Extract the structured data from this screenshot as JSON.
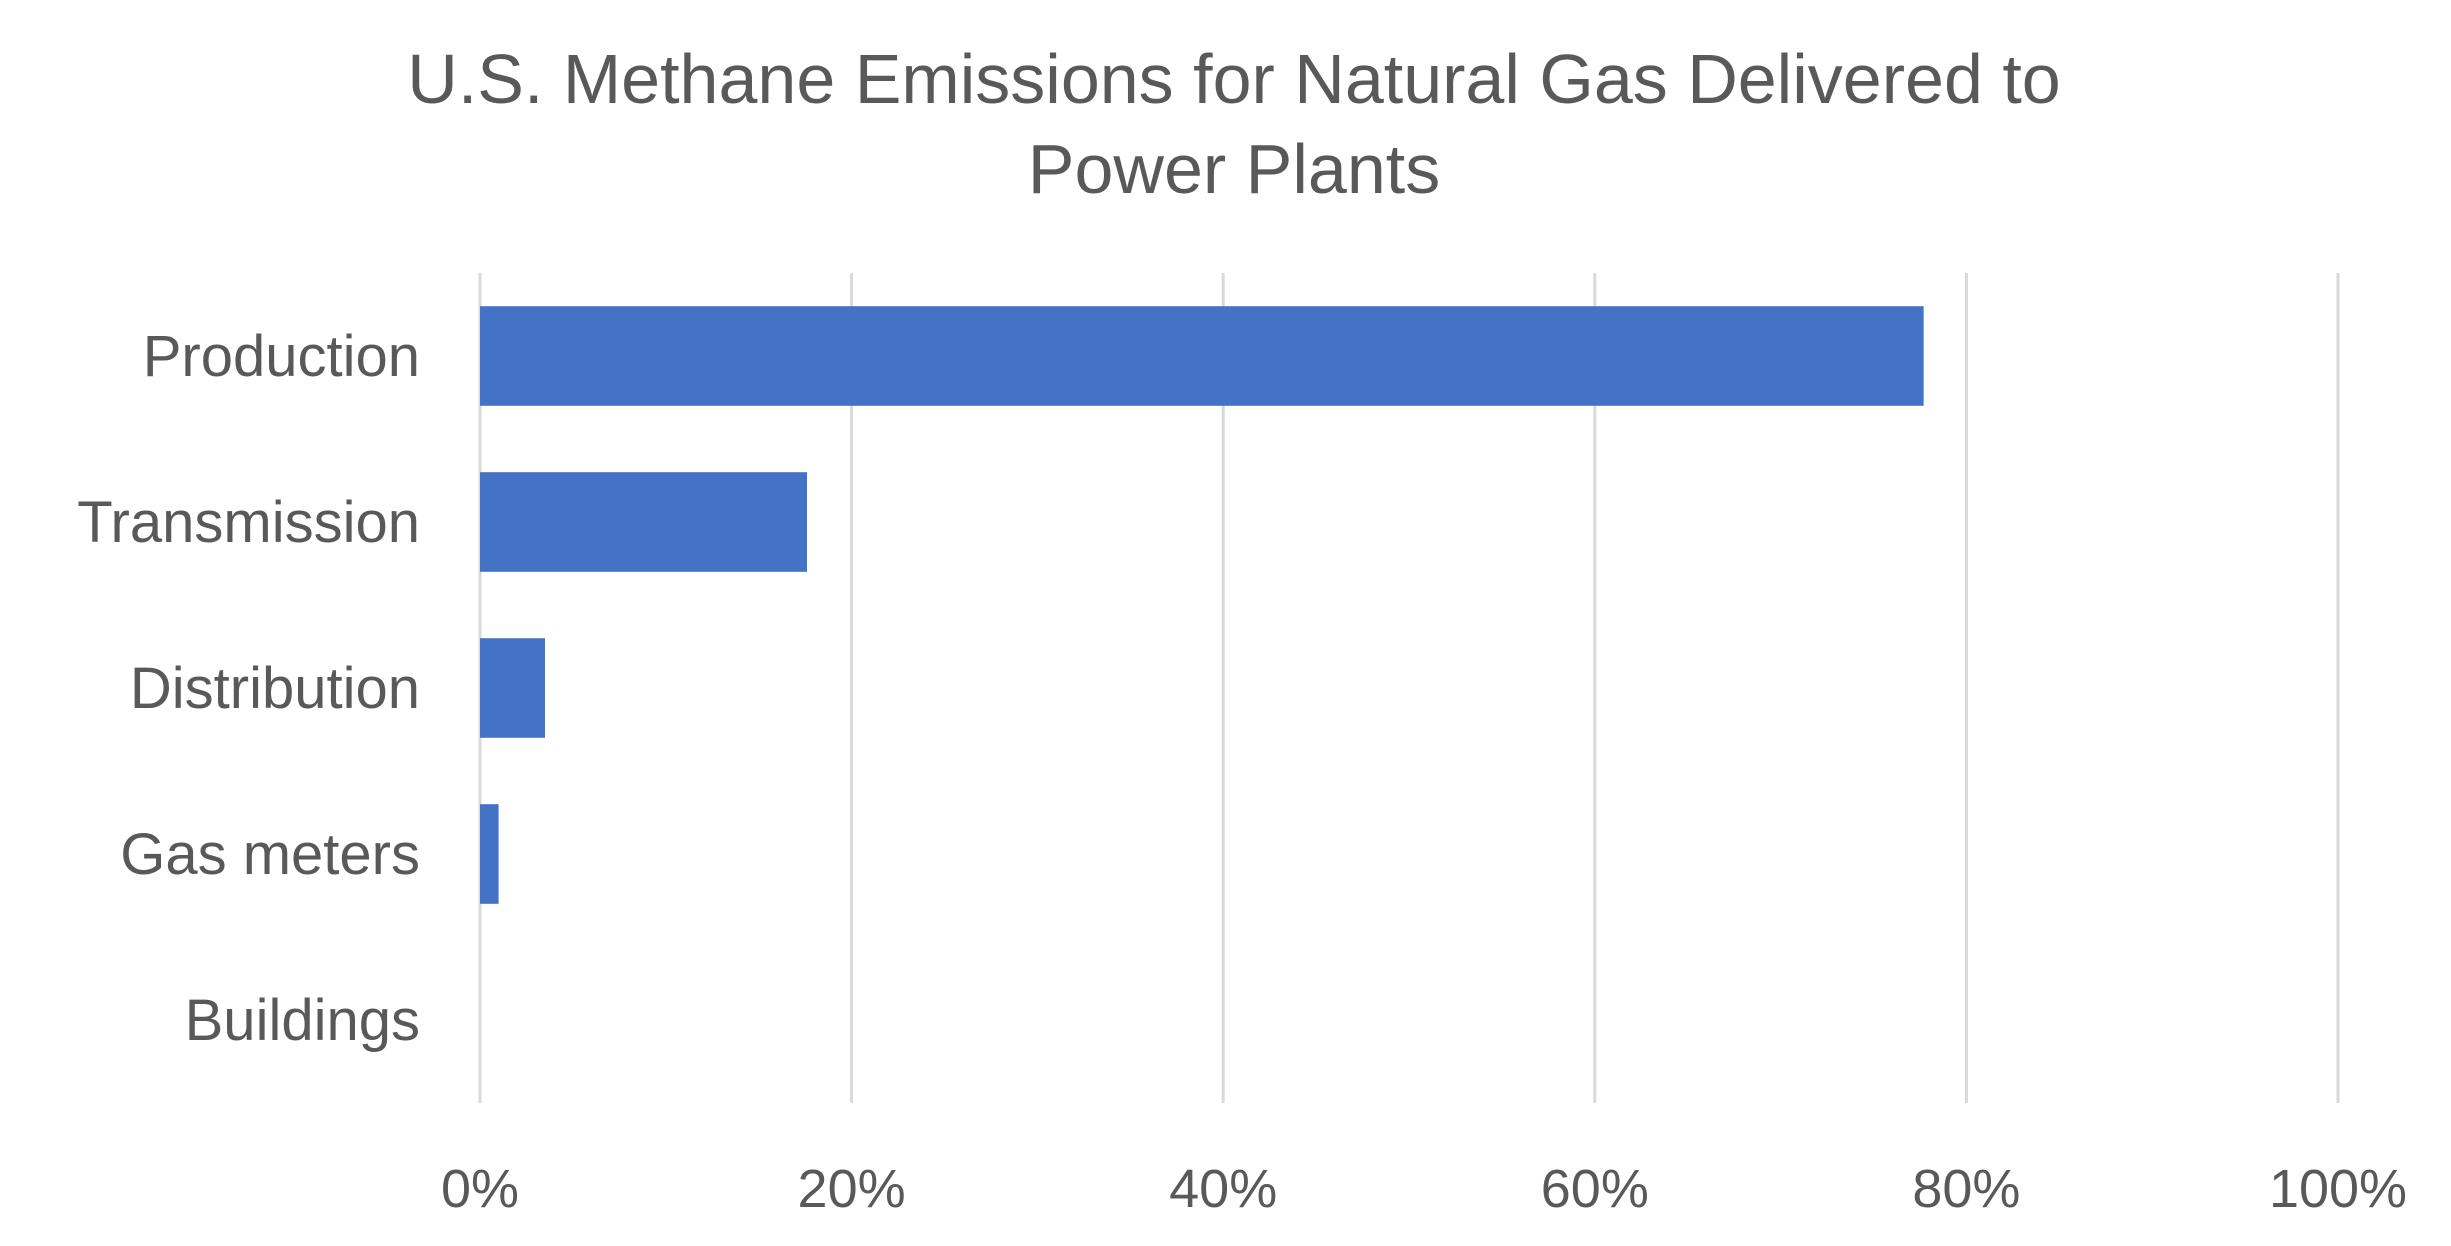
{
  "chart_data": {
    "type": "bar",
    "orientation": "horizontal",
    "title_lines": [
      "U.S. Methane Emissions for Natural Gas Delivered to",
      "Power Plants"
    ],
    "categories": [
      "Production",
      "Transmission",
      "Distribution",
      "Gas meters",
      "Buildings"
    ],
    "values": [
      0.777,
      0.176,
      0.035,
      0.01,
      0.0
    ],
    "xlim": [
      0,
      1
    ],
    "x_ticks": [
      "0%",
      "20%",
      "40%",
      "60%",
      "80%",
      "100%"
    ],
    "xlabel": "",
    "ylabel": "",
    "grid": "vertical",
    "legend": "none",
    "bar_color": "#4472C4",
    "grid_color": "#D9D9D9",
    "text_color": "#595959"
  }
}
